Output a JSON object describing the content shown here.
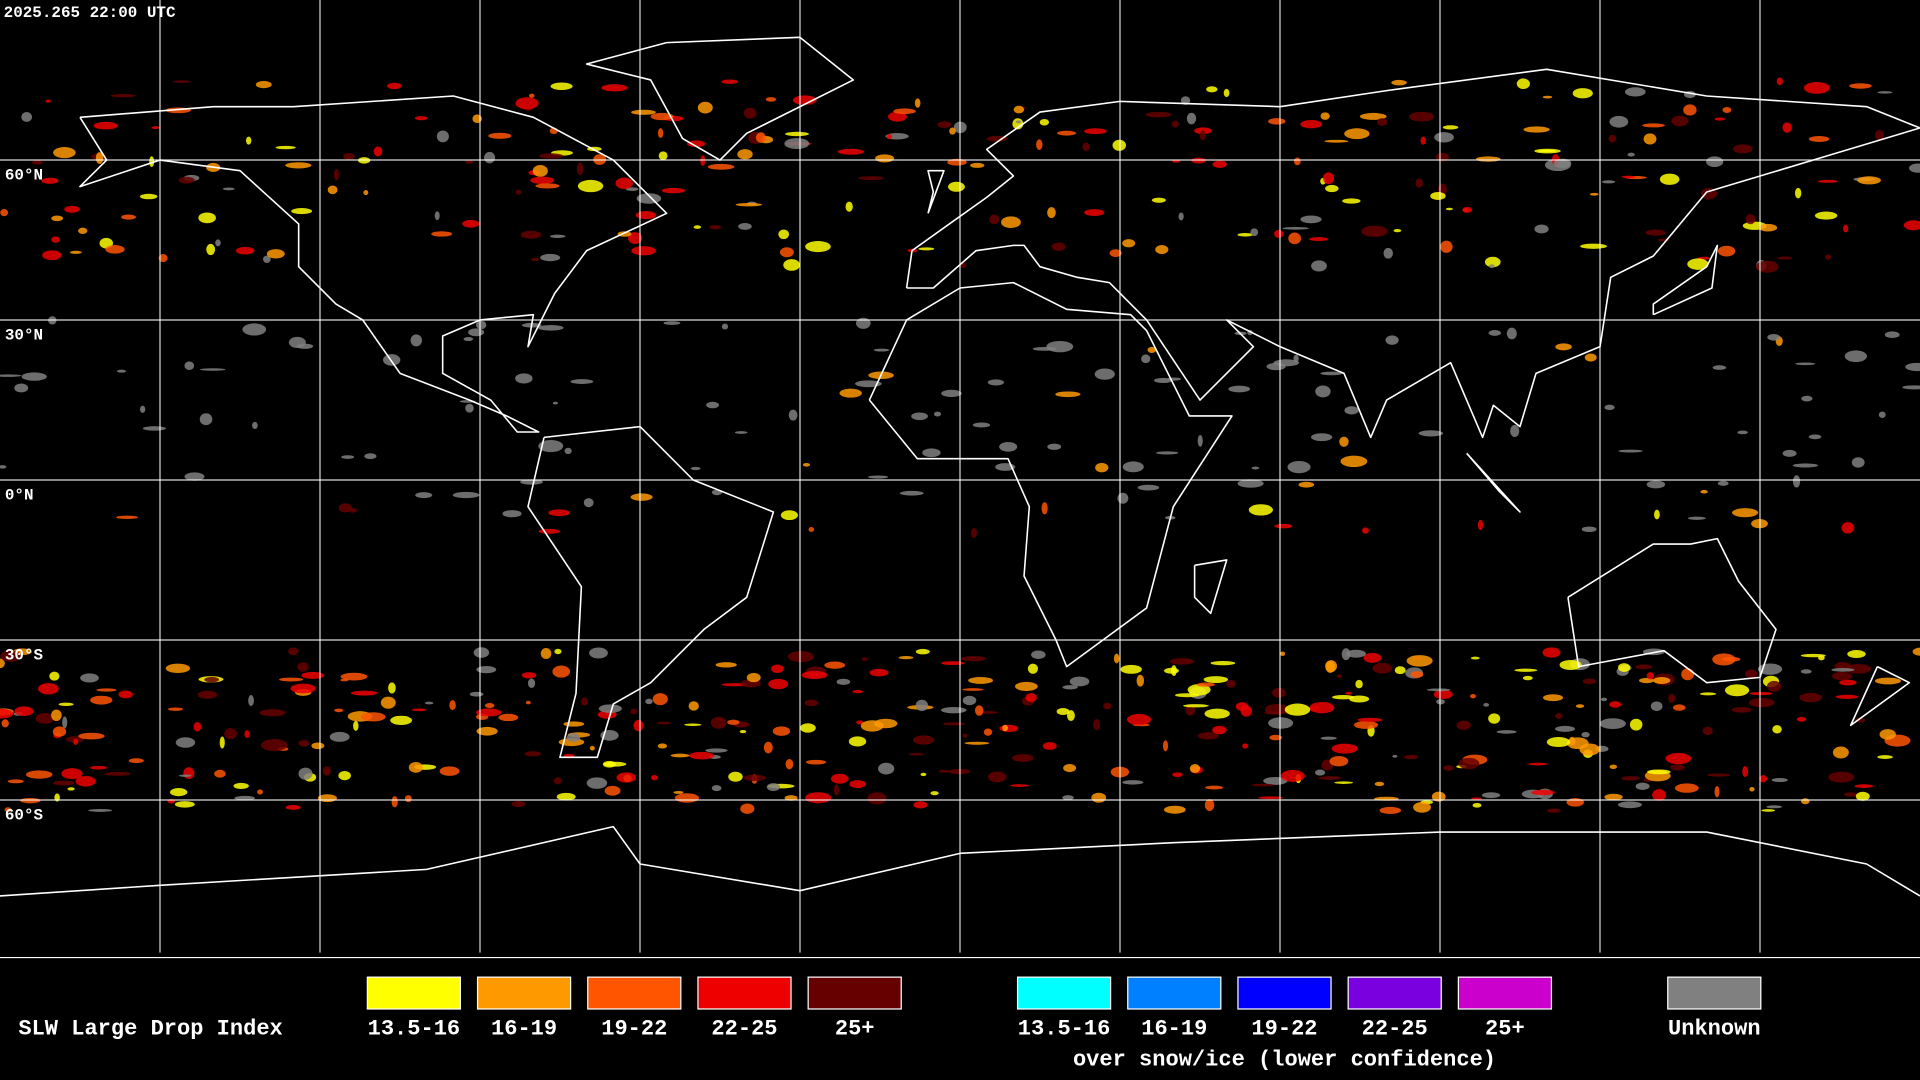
{
  "header": {
    "timestamp": "2025.265 22:00 UTC"
  },
  "latitude_labels": [
    "60°N",
    "30°N",
    "0°N",
    "30°S",
    "60°S"
  ],
  "legend": {
    "title": "SLW Large Drop Index",
    "groups": [
      {
        "items": [
          {
            "label": "13.5-16",
            "color": "#ffff00"
          },
          {
            "label": "16-19",
            "color": "#ff9900"
          },
          {
            "label": "19-22",
            "color": "#ff5500"
          },
          {
            "label": "22-25",
            "color": "#ee0000"
          },
          {
            "label": "25+",
            "color": "#660000"
          }
        ]
      },
      {
        "items": [
          {
            "label": "13.5-16",
            "color": "#00ffff"
          },
          {
            "label": "16-19",
            "color": "#0080ff"
          },
          {
            "label": "19-22",
            "color": "#0000ff"
          },
          {
            "label": "22-25",
            "color": "#7a00e0"
          },
          {
            "label": "25+",
            "color": "#cc00cc"
          }
        ],
        "note": "over snow/ice (lower confidence)"
      }
    ],
    "unknown": {
      "label": "Unknown",
      "color": "#808080"
    }
  }
}
